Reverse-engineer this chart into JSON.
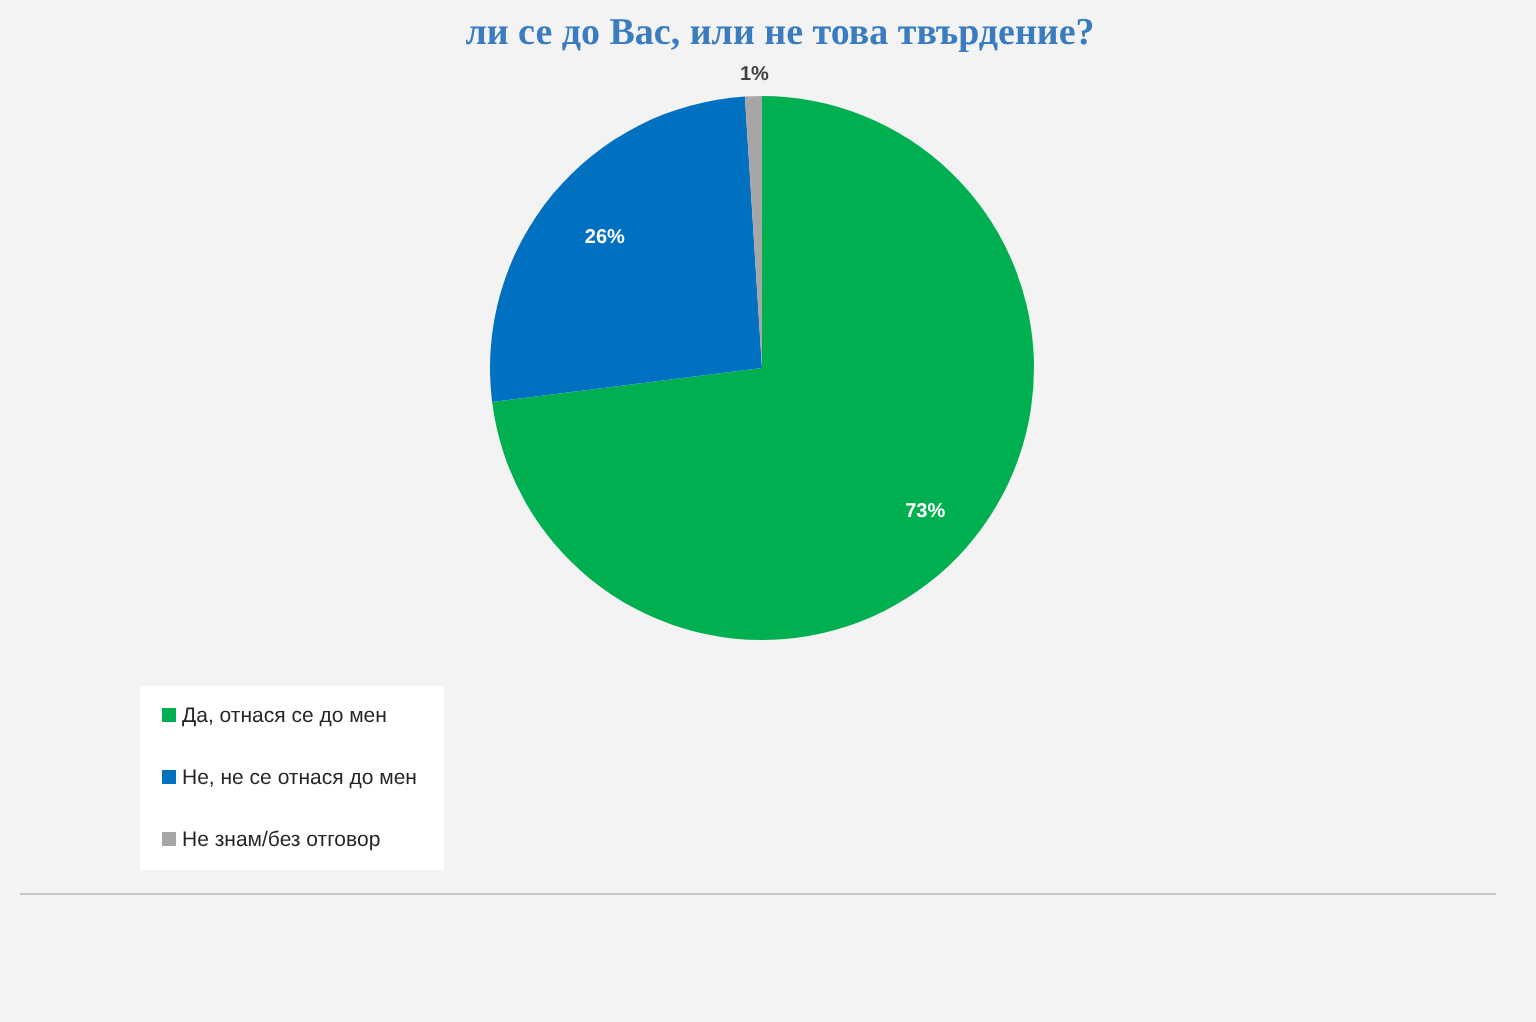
{
  "chart_data": {
    "type": "pie",
    "title": "ли се до Вас, или не това твърдение?",
    "categories": [
      "Да, отнася се до мен",
      "Не, не се отнася до мен",
      "Не знам/без отговор"
    ],
    "values": [
      73,
      26,
      1
    ],
    "colors": [
      "#00b050",
      "#0070c0",
      "#a6a6a6"
    ],
    "value_labels": [
      "73%",
      "26%",
      "1%"
    ],
    "legend": "bottom left"
  }
}
